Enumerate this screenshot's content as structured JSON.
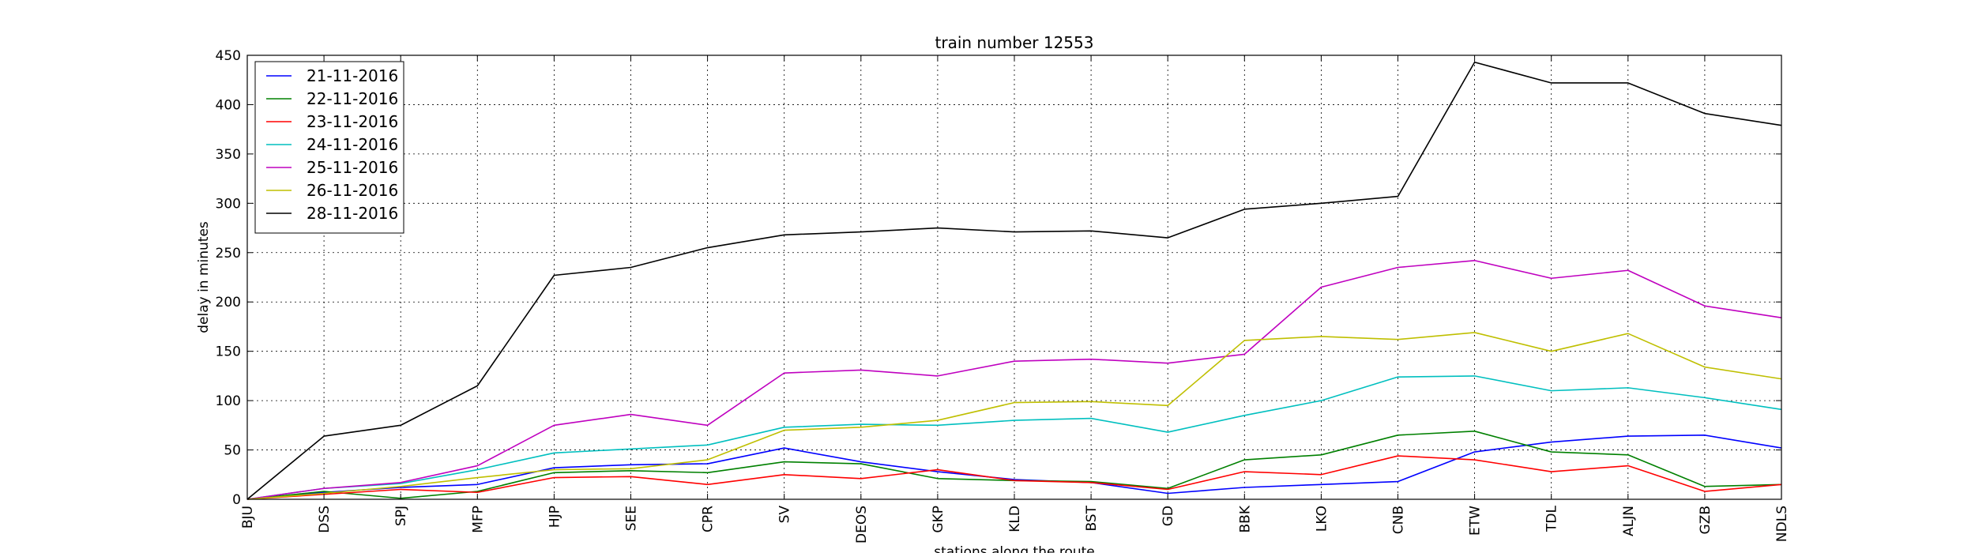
{
  "chart_data": {
    "type": "line",
    "title": "train number 12553",
    "xlabel": "stations along the route",
    "ylabel": "delay in minutes",
    "categories": [
      "BJU",
      "DSS",
      "SPJ",
      "MFP",
      "HJP",
      "SEE",
      "CPR",
      "SV",
      "DEOS",
      "GKP",
      "KLD",
      "BST",
      "GD",
      "BBK",
      "LKO",
      "CNB",
      "ETW",
      "TDL",
      "ALJN",
      "GZB",
      "NDLS"
    ],
    "ylim": [
      0,
      450
    ],
    "yticks": [
      "0",
      "50",
      "100",
      "150",
      "200",
      "250",
      "300",
      "350",
      "400",
      "450"
    ],
    "grid": true,
    "legend_position": "top-left",
    "series": [
      {
        "name": "21-11-2016",
        "color": "#0000ff",
        "values": [
          0,
          7,
          12,
          15,
          32,
          35,
          36,
          52,
          38,
          28,
          20,
          17,
          6,
          12,
          15,
          18,
          48,
          58,
          64,
          65,
          52
        ]
      },
      {
        "name": "22-11-2016",
        "color": "#008000",
        "values": [
          0,
          8,
          1,
          8,
          27,
          29,
          27,
          38,
          36,
          21,
          19,
          18,
          11,
          40,
          45,
          65,
          69,
          48,
          45,
          13,
          15
        ]
      },
      {
        "name": "23-11-2016",
        "color": "#ff0000",
        "values": [
          0,
          5,
          10,
          7,
          22,
          23,
          15,
          25,
          21,
          30,
          19,
          17,
          10,
          28,
          25,
          44,
          40,
          28,
          34,
          8,
          15
        ]
      },
      {
        "name": "24-11-2016",
        "color": "#00bfbf",
        "values": [
          0,
          11,
          16,
          30,
          47,
          51,
          55,
          73,
          76,
          75,
          80,
          82,
          68,
          85,
          100,
          124,
          125,
          110,
          113,
          103,
          91
        ]
      },
      {
        "name": "25-11-2016",
        "color": "#bf00bf",
        "values": [
          0,
          11,
          17,
          34,
          75,
          86,
          75,
          128,
          131,
          125,
          140,
          142,
          138,
          147,
          215,
          235,
          242,
          224,
          232,
          196,
          184
        ]
      },
      {
        "name": "26-11-2016",
        "color": "#bfbf00",
        "values": [
          0,
          6,
          13,
          22,
          30,
          31,
          40,
          70,
          73,
          80,
          98,
          99,
          95,
          161,
          165,
          162,
          169,
          150,
          168,
          134,
          122
        ]
      },
      {
        "name": "28-11-2016",
        "color": "#000000",
        "values": [
          0,
          64,
          75,
          115,
          227,
          235,
          255,
          268,
          271,
          275,
          271,
          272,
          265,
          294,
          300,
          307,
          443,
          422,
          422,
          391,
          379
        ]
      }
    ]
  }
}
